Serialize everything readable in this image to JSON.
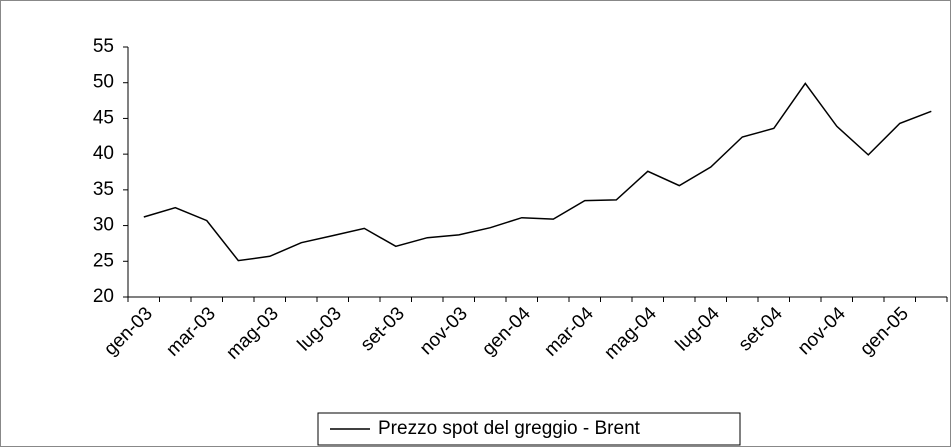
{
  "chart_data": {
    "type": "line",
    "categories": [
      "gen-03",
      null,
      "mar-03",
      null,
      "mag-03",
      null,
      "lug-03",
      null,
      "set-03",
      null,
      "nov-03",
      null,
      "gen-04",
      null,
      "mar-04",
      null,
      "mag-04",
      null,
      "lug-04",
      null,
      "set-04",
      null,
      "nov-04",
      null,
      "gen-05",
      null
    ],
    "series": [
      {
        "name": "Prezzo spot del greggio - Brent",
        "color": "#000000",
        "values": [
          31.2,
          32.5,
          30.7,
          25.1,
          25.7,
          27.6,
          28.6,
          29.6,
          27.1,
          28.3,
          28.7,
          29.7,
          31.1,
          30.9,
          33.5,
          33.6,
          37.6,
          35.6,
          38.2,
          42.4,
          43.6,
          49.9,
          43.9,
          39.9,
          44.3,
          46.0
        ]
      }
    ],
    "ylim": [
      20,
      55
    ],
    "yticks": [
      20,
      25,
      30,
      35,
      40,
      45,
      50,
      55
    ],
    "legend": "bottom"
  }
}
